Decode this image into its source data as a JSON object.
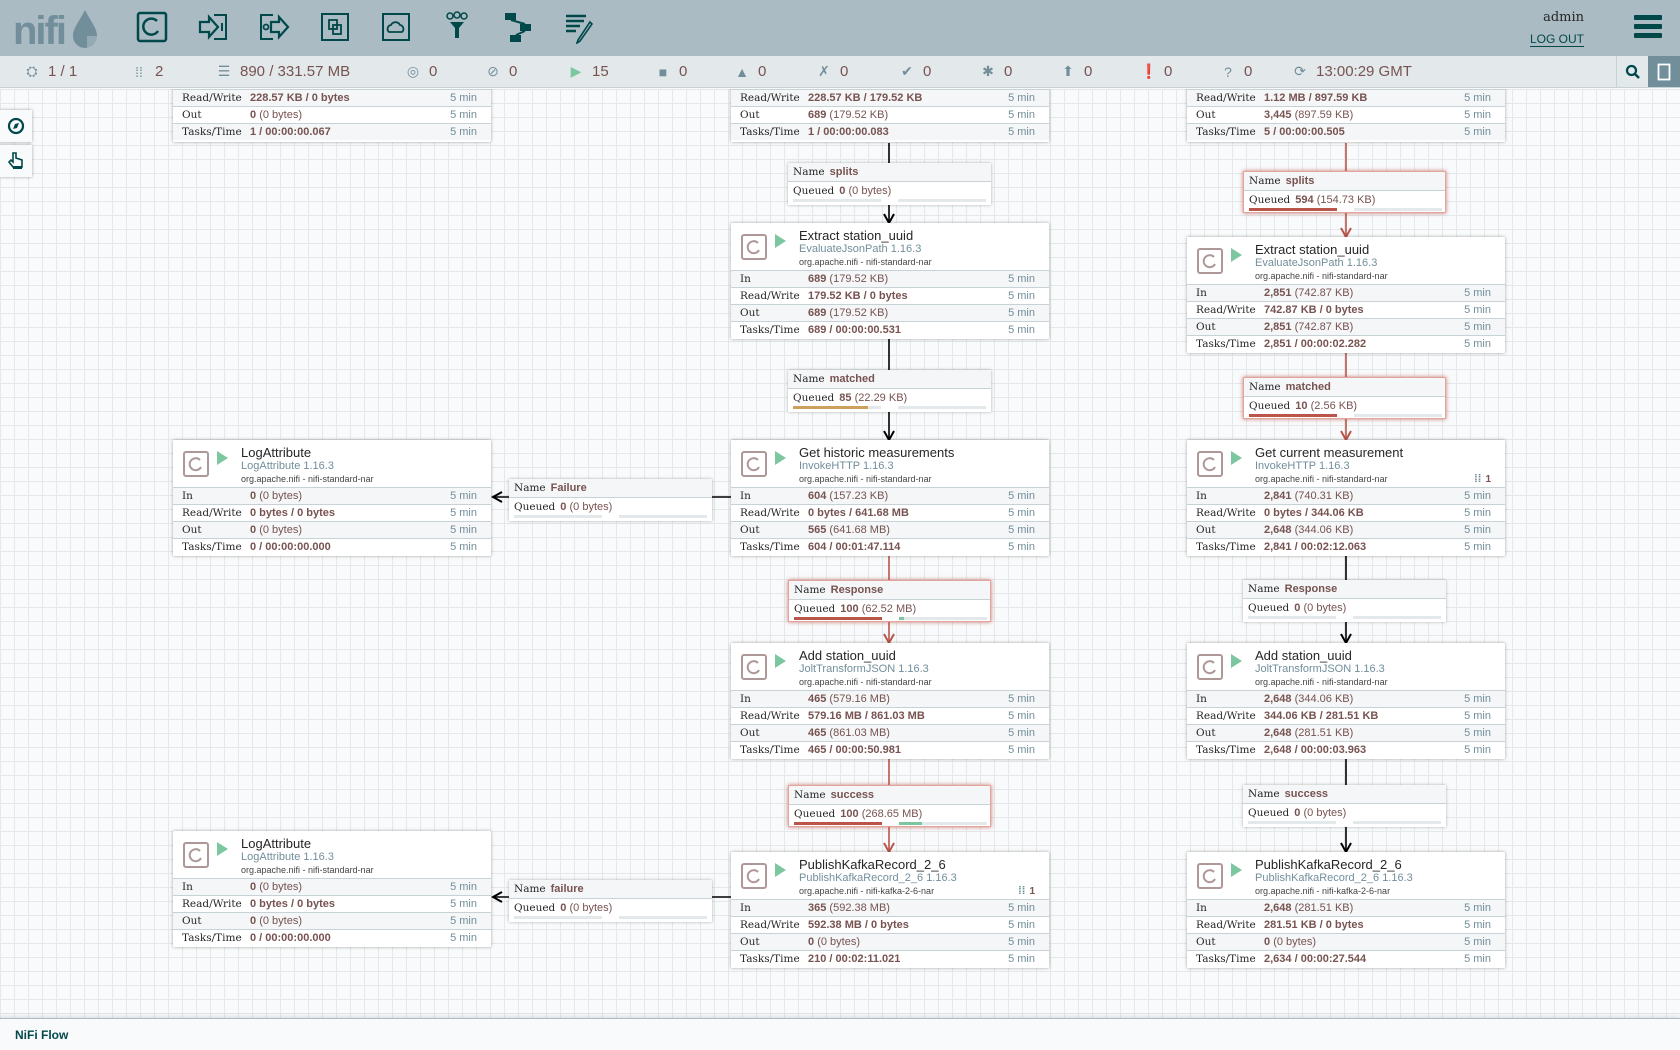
{
  "header": {
    "logo_text": "nifi",
    "toolbar": [
      {
        "name": "processor",
        "icon": "processor-icon"
      },
      {
        "name": "input-port",
        "icon": "input-port-icon"
      },
      {
        "name": "output-port",
        "icon": "output-port-icon"
      },
      {
        "name": "process-group",
        "icon": "process-group-icon"
      },
      {
        "name": "remote-process-group",
        "icon": "remote-process-group-icon"
      },
      {
        "name": "funnel",
        "icon": "funnel-icon"
      },
      {
        "name": "template",
        "icon": "template-icon"
      },
      {
        "name": "label",
        "icon": "label-icon"
      }
    ],
    "user": "admin",
    "logout": "LOG OUT"
  },
  "status_bar": {
    "cluster": "1 / 1",
    "active_threads": "2",
    "queued": "890 / 331.57 MB",
    "transmitting": "0",
    "not_transmitting": "0",
    "running": "15",
    "stopped": "0",
    "invalid": "0",
    "disabled": "0",
    "up_to_date": "0",
    "locally_modified": "0",
    "stale": "0",
    "locally_modified_stale": "0",
    "sync_failure": "0",
    "last_refresh": "13:00:29 GMT"
  },
  "stat_labels": {
    "in": "In",
    "read_write": "Read/Write",
    "out": "Out",
    "tasks_time": "Tasks/Time",
    "window": "5 min"
  },
  "conn_labels": {
    "name": "Name",
    "queued": "Queued"
  },
  "processors": [
    {
      "partial": true,
      "read_write": "228.57 KB / 0 bytes",
      "out_count": "0",
      "out_size": "(0 bytes)",
      "tasks_time": "1 / 00:00:00.067"
    },
    {
      "partial": true,
      "read_write": "228.57 KB / 179.52 KB",
      "out_count": "689",
      "out_size": "(179.52 KB)",
      "tasks_time": "1 / 00:00:00.083"
    },
    {
      "partial": true,
      "read_write": "1.12 MB / 897.59 KB",
      "out_count": "3,445",
      "out_size": "(897.59 KB)",
      "tasks_time": "5 / 00:00:00.505"
    },
    {
      "name": "Extract station_uuid",
      "type": "EvaluateJsonPath 1.16.3",
      "bundle": "org.apache.nifi - nifi-standard-nar",
      "in_count": "689",
      "in_size": "(179.52 KB)",
      "read_write": "179.52 KB / 0 bytes",
      "out_count": "689",
      "out_size": "(179.52 KB)",
      "tasks_time": "689 / 00:00:00.531"
    },
    {
      "name": "Extract station_uuid",
      "type": "EvaluateJsonPath 1.16.3",
      "bundle": "org.apache.nifi - nifi-standard-nar",
      "in_count": "2,851",
      "in_size": "(742.87 KB)",
      "read_write": "742.87 KB / 0 bytes",
      "out_count": "2,851",
      "out_size": "(742.87 KB)",
      "tasks_time": "2,851 / 00:00:02.282"
    },
    {
      "name": "LogAttribute",
      "type": "LogAttribute 1.16.3",
      "bundle": "org.apache.nifi - nifi-standard-nar",
      "in_count": "0",
      "in_size": "(0 bytes)",
      "read_write": "0 bytes / 0 bytes",
      "out_count": "0",
      "out_size": "(0 bytes)",
      "tasks_time": "0 / 00:00:00.000"
    },
    {
      "name": "Get historic measurements",
      "type": "InvokeHTTP 1.16.3",
      "bundle": "org.apache.nifi - nifi-standard-nar",
      "in_count": "604",
      "in_size": "(157.23 KB)",
      "read_write": "0 bytes / 641.68 MB",
      "out_count": "565",
      "out_size": "(641.68 MB)",
      "tasks_time": "604 / 00:01:47.114"
    },
    {
      "name": "Get current measurement",
      "type": "InvokeHTTP 1.16.3",
      "bundle": "org.apache.nifi - nifi-standard-nar",
      "threads": "1",
      "in_count": "2,841",
      "in_size": "(740.31 KB)",
      "read_write": "0 bytes / 344.06 KB",
      "out_count": "2,648",
      "out_size": "(344.06 KB)",
      "tasks_time": "2,841 / 00:02:12.063"
    },
    {
      "name": "Add station_uuid",
      "type": "JoltTransformJSON 1.16.3",
      "bundle": "org.apache.nifi - nifi-standard-nar",
      "in_count": "465",
      "in_size": "(579.16 MB)",
      "read_write": "579.16 MB / 861.03 MB",
      "out_count": "465",
      "out_size": "(861.03 MB)",
      "tasks_time": "465 / 00:00:50.981"
    },
    {
      "name": "Add station_uuid",
      "type": "JoltTransformJSON 1.16.3",
      "bundle": "org.apache.nifi - nifi-standard-nar",
      "in_count": "2,648",
      "in_size": "(344.06 KB)",
      "read_write": "344.06 KB / 281.51 KB",
      "out_count": "2,648",
      "out_size": "(281.51 KB)",
      "tasks_time": "2,648 / 00:00:03.963"
    },
    {
      "name": "LogAttribute",
      "type": "LogAttribute 1.16.3",
      "bundle": "org.apache.nifi - nifi-standard-nar",
      "in_count": "0",
      "in_size": "(0 bytes)",
      "read_write": "0 bytes / 0 bytes",
      "out_count": "0",
      "out_size": "(0 bytes)",
      "tasks_time": "0 / 00:00:00.000"
    },
    {
      "name": "PublishKafkaRecord_2_6",
      "type": "PublishKafkaRecord_2_6 1.16.3",
      "bundle": "org.apache.nifi - nifi-kafka-2-6-nar",
      "threads": "1",
      "in_count": "365",
      "in_size": "(592.38 MB)",
      "read_write": "592.38 MB / 0 bytes",
      "out_count": "0",
      "out_size": "(0 bytes)",
      "tasks_time": "210 / 00:02:11.021"
    },
    {
      "name": "PublishKafkaRecord_2_6",
      "type": "PublishKafkaRecord_2_6 1.16.3",
      "bundle": "org.apache.nifi - nifi-kafka-2-6-nar",
      "in_count": "2,648",
      "in_size": "(281.51 KB)",
      "read_write": "281.51 KB / 0 bytes",
      "out_count": "0",
      "out_size": "(0 bytes)",
      "tasks_time": "2,634 / 00:00:27.544"
    }
  ],
  "connections": [
    {
      "name": "splits",
      "count": "0",
      "size": "(0 bytes)",
      "count_fill": 0,
      "size_fill": 0,
      "backpressure": false
    },
    {
      "name": "splits",
      "count": "594",
      "size": "(154.73 KB)",
      "count_fill": 1.0,
      "size_fill": 0,
      "backpressure": true
    },
    {
      "name": "matched",
      "count": "85",
      "size": "(22.29 KB)",
      "count_fill": 0.85,
      "size_fill": 0,
      "backpressure": false
    },
    {
      "name": "matched",
      "count": "10",
      "size": "(2.56 KB)",
      "count_fill": 1.0,
      "size_fill": 0,
      "backpressure": true
    },
    {
      "name": "Failure",
      "count": "0",
      "size": "(0 bytes)",
      "count_fill": 0,
      "size_fill": 0,
      "backpressure": false
    },
    {
      "name": "Response",
      "count": "100",
      "size": "(62.52 MB)",
      "count_fill": 1.0,
      "size_fill": 0.06,
      "backpressure": true
    },
    {
      "name": "Response",
      "count": "0",
      "size": "(0 bytes)",
      "count_fill": 0,
      "size_fill": 0,
      "backpressure": false
    },
    {
      "name": "failure",
      "count": "0",
      "size": "(0 bytes)",
      "count_fill": 0,
      "size_fill": 0,
      "backpressure": false
    },
    {
      "name": "success",
      "count": "100",
      "size": "(268.65 MB)",
      "count_fill": 1.0,
      "size_fill": 0.26,
      "backpressure": true
    },
    {
      "name": "success",
      "count": "0",
      "size": "(0 bytes)",
      "count_fill": 0,
      "size_fill": 0,
      "backpressure": false
    }
  ],
  "colors": {
    "accent": "#004849",
    "backpressure": "#ba554a",
    "warning": "#cf9f5d",
    "size_fill": "#7dc7a0",
    "header_bg": "#aabbc3"
  },
  "breadcrumb": "NiFi Flow"
}
